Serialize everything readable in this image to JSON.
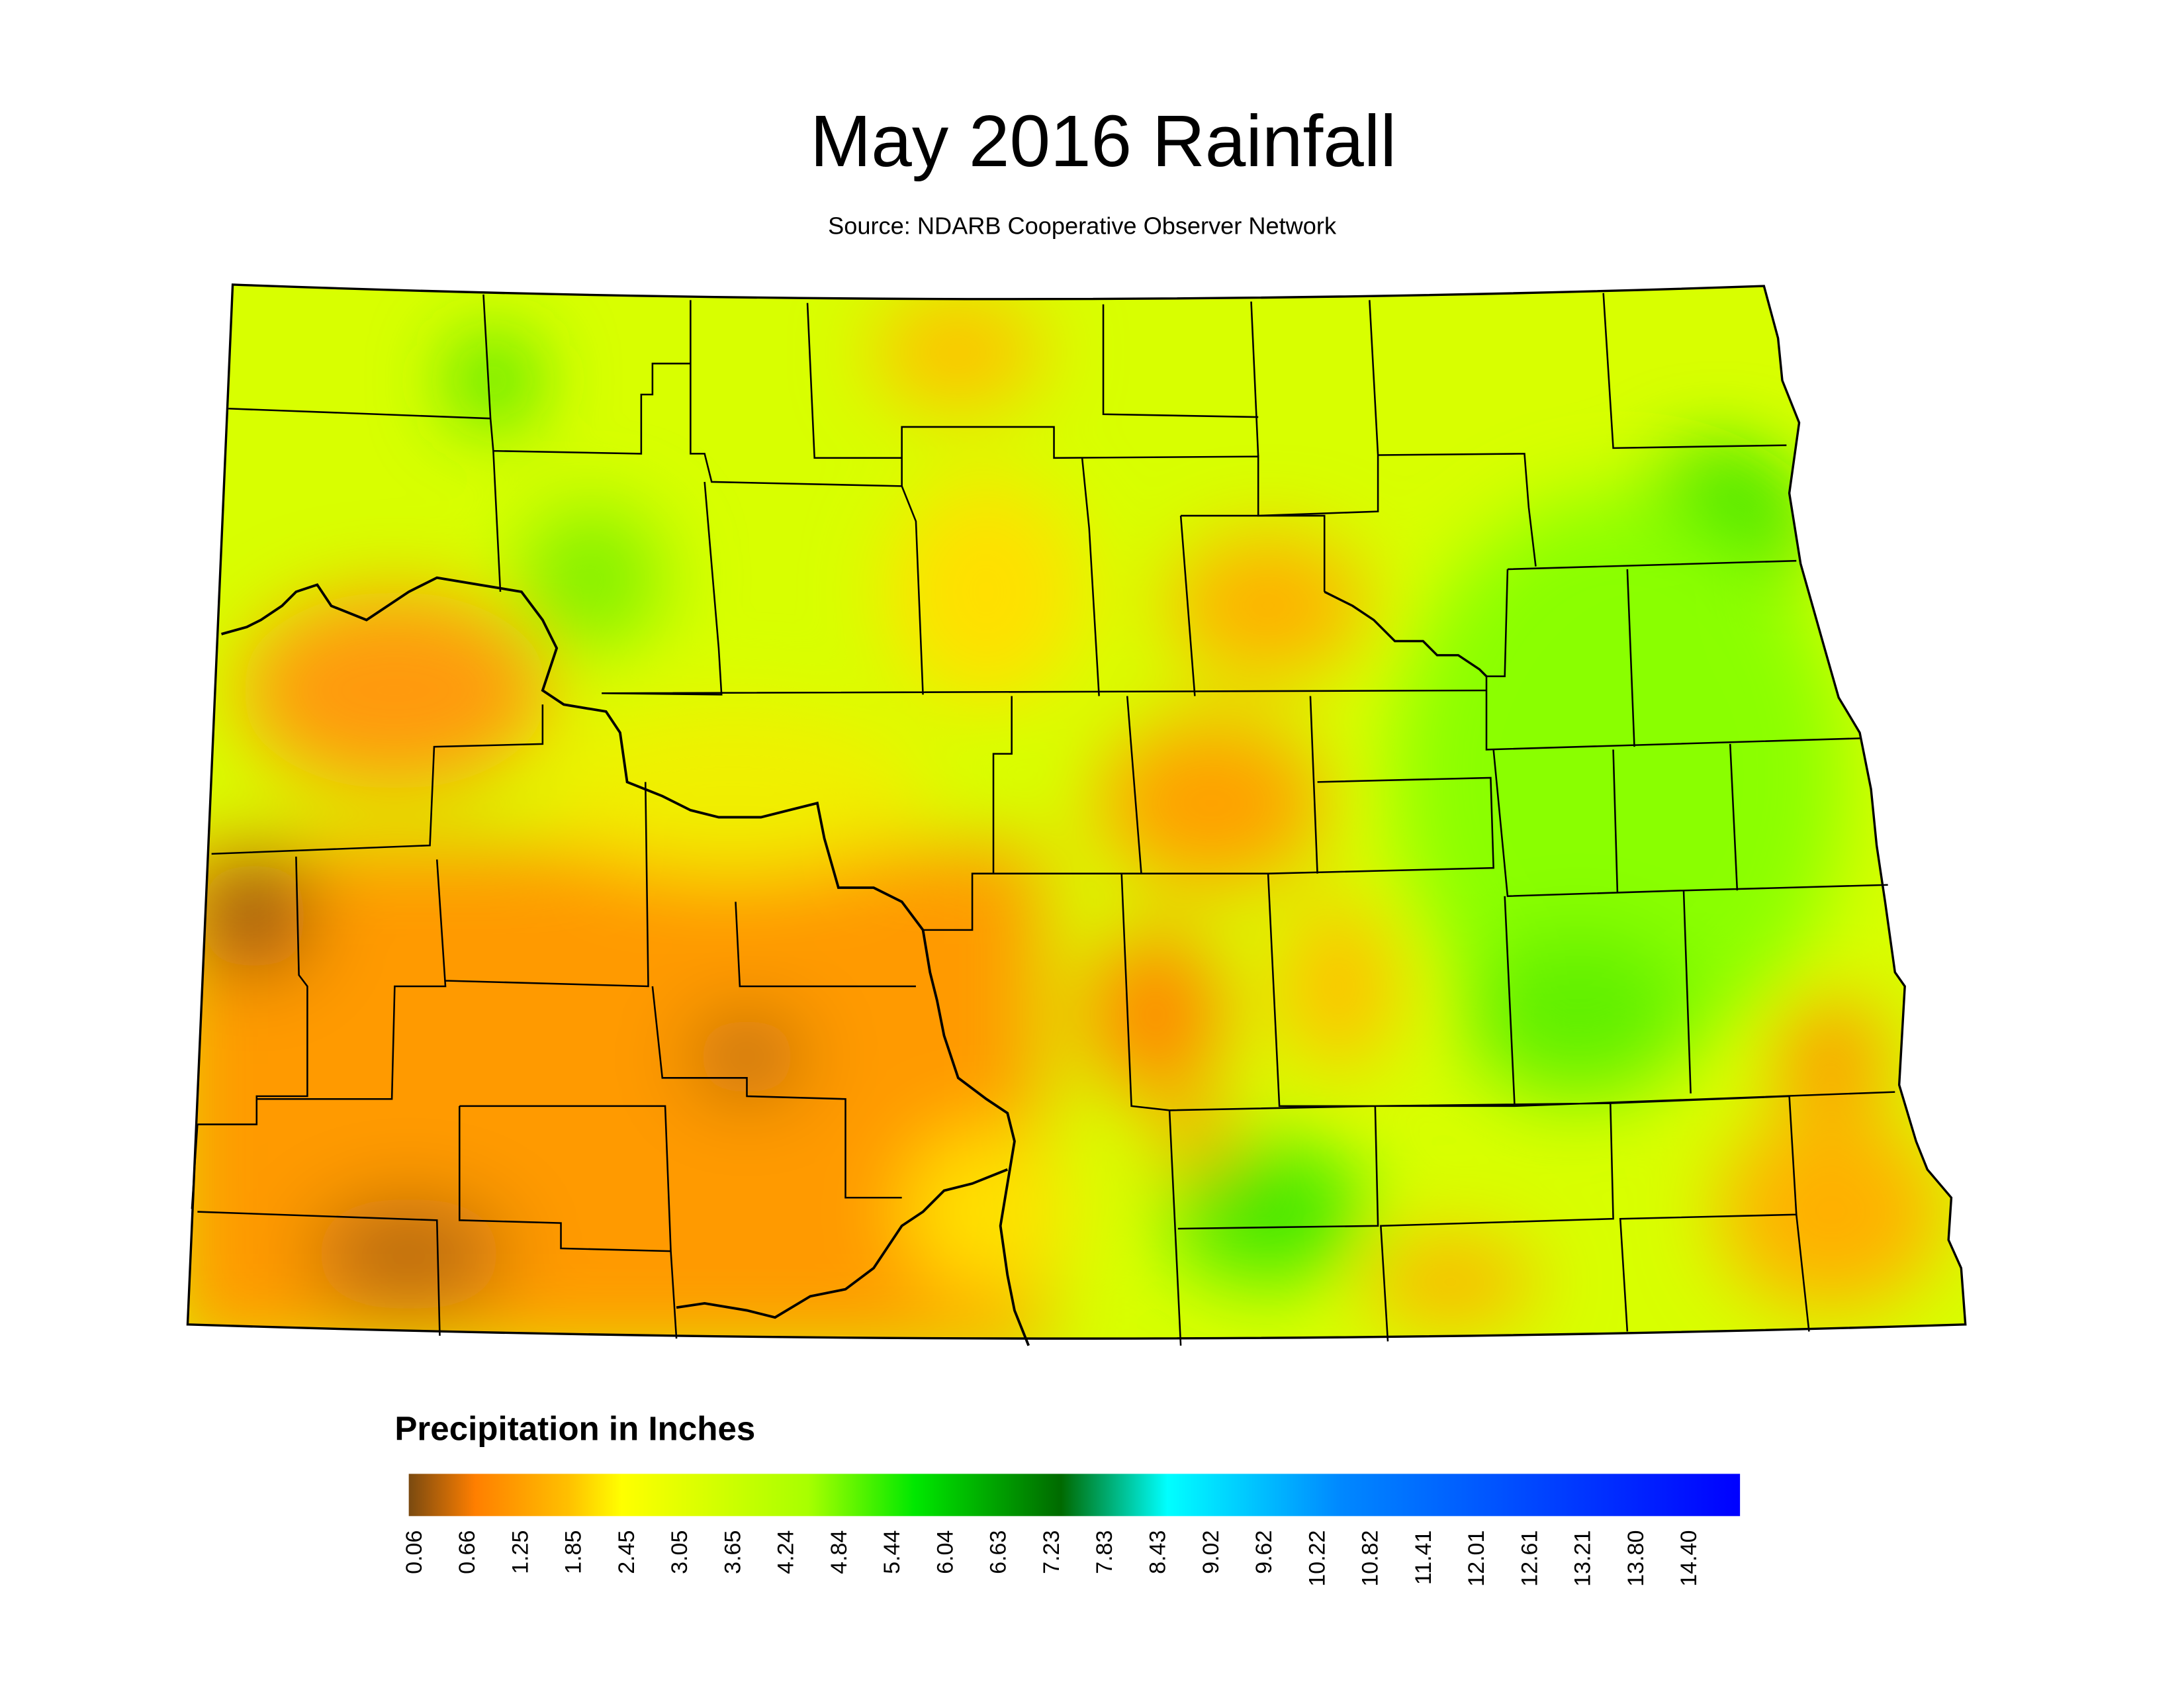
{
  "title": "May 2016 Rainfall",
  "subtitle": "Source: NDARB Cooperative Observer Network",
  "legend": {
    "title": "Precipitation in Inches",
    "labels": [
      "0.06",
      "0.66",
      "1.25",
      "1.85",
      "2.45",
      "3.05",
      "3.65",
      "4.24",
      "4.84",
      "5.44",
      "6.04",
      "6.63",
      "7.23",
      "7.83",
      "8.43",
      "9.02",
      "9.62",
      "10.22",
      "10.82",
      "11.41",
      "12.01",
      "12.61",
      "13.21",
      "13.80",
      "14.40"
    ]
  }
}
